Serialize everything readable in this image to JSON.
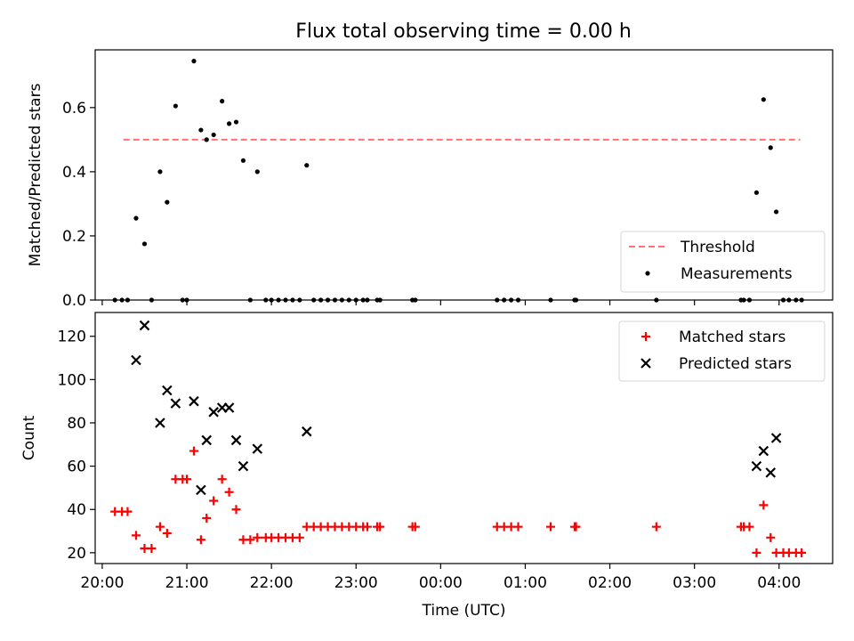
{
  "figure": {
    "title": "Flux total observing time = 0.00 h"
  },
  "chart_data": [
    {
      "type": "scatter",
      "ylabel": "Matched/Predicted stars",
      "xlim": [
        "2024-01-01T19:55",
        "2024-01-02T04:38"
      ],
      "ylim": [
        0,
        0.78
      ],
      "yticks": [
        0.0,
        0.2,
        0.4,
        0.6
      ],
      "ytick_labels": [
        "0.0",
        "0.2",
        "0.4",
        "0.6"
      ],
      "threshold": {
        "name": "Threshold",
        "value": 0.5,
        "x_start": "2024-01-01T20:15",
        "x_end": "2024-01-02T04:15",
        "color": "#ff7070",
        "style": "dashed"
      },
      "series": [
        {
          "name": "Measurements",
          "color": "#000000",
          "marker": "dot",
          "points": [
            [
              "2024-01-01T20:09",
              0
            ],
            [
              "2024-01-01T20:14",
              0
            ],
            [
              "2024-01-01T20:18",
              0
            ],
            [
              "2024-01-01T20:24",
              0.255
            ],
            [
              "2024-01-01T20:30",
              0.175
            ],
            [
              "2024-01-01T20:35",
              0
            ],
            [
              "2024-01-01T20:41",
              0.4
            ],
            [
              "2024-01-01T20:46",
              0.305
            ],
            [
              "2024-01-01T20:52",
              0.605
            ],
            [
              "2024-01-01T20:57",
              0
            ],
            [
              "2024-01-01T21:00",
              0
            ],
            [
              "2024-01-01T21:05",
              0.745
            ],
            [
              "2024-01-01T21:10",
              0.53
            ],
            [
              "2024-01-01T21:14",
              0.5
            ],
            [
              "2024-01-01T21:19",
              0.515
            ],
            [
              "2024-01-01T21:25",
              0.62
            ],
            [
              "2024-01-01T21:30",
              0.55
            ],
            [
              "2024-01-01T21:35",
              0.555
            ],
            [
              "2024-01-01T21:40",
              0.435
            ],
            [
              "2024-01-01T21:45",
              0
            ],
            [
              "2024-01-01T21:50",
              0.4
            ],
            [
              "2024-01-01T21:56",
              0
            ],
            [
              "2024-01-01T22:00",
              0
            ],
            [
              "2024-01-01T22:05",
              0
            ],
            [
              "2024-01-01T22:10",
              0
            ],
            [
              "2024-01-01T22:15",
              0
            ],
            [
              "2024-01-01T22:20",
              0
            ],
            [
              "2024-01-01T22:25",
              0.42
            ],
            [
              "2024-01-01T22:30",
              0
            ],
            [
              "2024-01-01T22:35",
              0
            ],
            [
              "2024-01-01T22:40",
              0
            ],
            [
              "2024-01-01T22:45",
              0
            ],
            [
              "2024-01-01T22:50",
              0
            ],
            [
              "2024-01-01T22:55",
              0
            ],
            [
              "2024-01-01T23:00",
              0
            ],
            [
              "2024-01-01T23:05",
              0
            ],
            [
              "2024-01-01T23:08",
              0
            ],
            [
              "2024-01-01T23:15",
              0
            ],
            [
              "2024-01-01T23:17",
              0
            ],
            [
              "2024-01-01T23:40",
              0
            ],
            [
              "2024-01-01T23:42",
              0
            ],
            [
              "2024-01-02T00:40",
              0
            ],
            [
              "2024-01-02T00:45",
              0
            ],
            [
              "2024-01-02T00:50",
              0
            ],
            [
              "2024-01-02T00:55",
              0
            ],
            [
              "2024-01-02T01:18",
              0
            ],
            [
              "2024-01-02T01:35",
              0
            ],
            [
              "2024-01-02T01:36",
              0
            ],
            [
              "2024-01-02T02:33",
              0
            ],
            [
              "2024-01-02T03:33",
              0
            ],
            [
              "2024-01-02T03:35",
              0
            ],
            [
              "2024-01-02T03:39",
              0
            ],
            [
              "2024-01-02T03:44",
              0.335
            ],
            [
              "2024-01-02T03:49",
              0.625
            ],
            [
              "2024-01-02T03:54",
              0.475
            ],
            [
              "2024-01-02T03:58",
              0.275
            ],
            [
              "2024-01-02T04:03",
              0
            ],
            [
              "2024-01-02T04:07",
              0
            ],
            [
              "2024-01-02T04:12",
              0
            ],
            [
              "2024-01-02T04:16",
              0
            ]
          ]
        }
      ],
      "legend": {
        "position": "lower-right",
        "entries": [
          "Threshold",
          "Measurements"
        ]
      }
    },
    {
      "type": "scatter",
      "xlabel": "Time (UTC)",
      "ylabel": "Count",
      "xlim": [
        "2024-01-01T19:55",
        "2024-01-02T04:38"
      ],
      "ylim": [
        15,
        131
      ],
      "xticks": [
        "2024-01-01T20:00",
        "2024-01-01T21:00",
        "2024-01-01T22:00",
        "2024-01-01T23:00",
        "2024-01-02T00:00",
        "2024-01-02T01:00",
        "2024-01-02T02:00",
        "2024-01-02T03:00",
        "2024-01-02T04:00"
      ],
      "xtick_labels": [
        "20:00",
        "21:00",
        "22:00",
        "23:00",
        "00:00",
        "01:00",
        "02:00",
        "03:00",
        "04:00"
      ],
      "yticks": [
        20,
        40,
        60,
        80,
        100,
        120
      ],
      "ytick_labels": [
        "20",
        "40",
        "60",
        "80",
        "100",
        "120"
      ],
      "series": [
        {
          "name": "Matched stars",
          "color": "#ff0000",
          "marker": "plus",
          "points": [
            [
              "2024-01-01T20:09",
              39
            ],
            [
              "2024-01-01T20:14",
              39
            ],
            [
              "2024-01-01T20:18",
              39
            ],
            [
              "2024-01-01T20:24",
              28
            ],
            [
              "2024-01-01T20:30",
              22
            ],
            [
              "2024-01-01T20:35",
              22
            ],
            [
              "2024-01-01T20:41",
              32
            ],
            [
              "2024-01-01T20:46",
              29
            ],
            [
              "2024-01-01T20:52",
              54
            ],
            [
              "2024-01-01T20:57",
              54
            ],
            [
              "2024-01-01T21:00",
              54
            ],
            [
              "2024-01-01T21:05",
              67
            ],
            [
              "2024-01-01T21:10",
              26
            ],
            [
              "2024-01-01T21:14",
              36
            ],
            [
              "2024-01-01T21:19",
              44
            ],
            [
              "2024-01-01T21:25",
              54
            ],
            [
              "2024-01-01T21:30",
              48
            ],
            [
              "2024-01-01T21:35",
              40
            ],
            [
              "2024-01-01T21:40",
              26
            ],
            [
              "2024-01-01T21:45",
              26
            ],
            [
              "2024-01-01T21:50",
              27
            ],
            [
              "2024-01-01T21:56",
              27
            ],
            [
              "2024-01-01T22:00",
              27
            ],
            [
              "2024-01-01T22:05",
              27
            ],
            [
              "2024-01-01T22:10",
              27
            ],
            [
              "2024-01-01T22:15",
              27
            ],
            [
              "2024-01-01T22:20",
              27
            ],
            [
              "2024-01-01T22:25",
              32
            ],
            [
              "2024-01-01T22:30",
              32
            ],
            [
              "2024-01-01T22:35",
              32
            ],
            [
              "2024-01-01T22:40",
              32
            ],
            [
              "2024-01-01T22:45",
              32
            ],
            [
              "2024-01-01T22:50",
              32
            ],
            [
              "2024-01-01T22:55",
              32
            ],
            [
              "2024-01-01T23:00",
              32
            ],
            [
              "2024-01-01T23:05",
              32
            ],
            [
              "2024-01-01T23:08",
              32
            ],
            [
              "2024-01-01T23:15",
              32
            ],
            [
              "2024-01-01T23:17",
              32
            ],
            [
              "2024-01-01T23:40",
              32
            ],
            [
              "2024-01-01T23:42",
              32
            ],
            [
              "2024-01-02T00:40",
              32
            ],
            [
              "2024-01-02T00:45",
              32
            ],
            [
              "2024-01-02T00:50",
              32
            ],
            [
              "2024-01-02T00:55",
              32
            ],
            [
              "2024-01-02T01:18",
              32
            ],
            [
              "2024-01-02T01:35",
              32
            ],
            [
              "2024-01-02T01:36",
              32
            ],
            [
              "2024-01-02T02:33",
              32
            ],
            [
              "2024-01-02T03:33",
              32
            ],
            [
              "2024-01-02T03:35",
              32
            ],
            [
              "2024-01-02T03:39",
              32
            ],
            [
              "2024-01-02T03:44",
              20
            ],
            [
              "2024-01-02T03:49",
              42
            ],
            [
              "2024-01-02T03:54",
              27
            ],
            [
              "2024-01-02T03:58",
              20
            ],
            [
              "2024-01-02T04:03",
              20
            ],
            [
              "2024-01-02T04:07",
              20
            ],
            [
              "2024-01-02T04:12",
              20
            ],
            [
              "2024-01-02T04:16",
              20
            ]
          ]
        },
        {
          "name": "Predicted stars",
          "color": "#000000",
          "marker": "x",
          "points": [
            [
              "2024-01-01T20:24",
              109
            ],
            [
              "2024-01-01T20:30",
              125
            ],
            [
              "2024-01-01T20:41",
              80
            ],
            [
              "2024-01-01T20:46",
              95
            ],
            [
              "2024-01-01T20:52",
              89
            ],
            [
              "2024-01-01T21:05",
              90
            ],
            [
              "2024-01-01T21:10",
              49
            ],
            [
              "2024-01-01T21:14",
              72
            ],
            [
              "2024-01-01T21:19",
              85
            ],
            [
              "2024-01-01T21:25",
              87
            ],
            [
              "2024-01-01T21:30",
              87
            ],
            [
              "2024-01-01T21:35",
              72
            ],
            [
              "2024-01-01T21:40",
              60
            ],
            [
              "2024-01-01T21:50",
              68
            ],
            [
              "2024-01-01T22:25",
              76
            ],
            [
              "2024-01-02T03:44",
              60
            ],
            [
              "2024-01-02T03:49",
              67
            ],
            [
              "2024-01-02T03:54",
              57
            ],
            [
              "2024-01-02T03:58",
              73
            ]
          ]
        }
      ],
      "legend": {
        "position": "upper-right",
        "entries": [
          "Matched stars",
          "Predicted stars"
        ]
      }
    }
  ]
}
